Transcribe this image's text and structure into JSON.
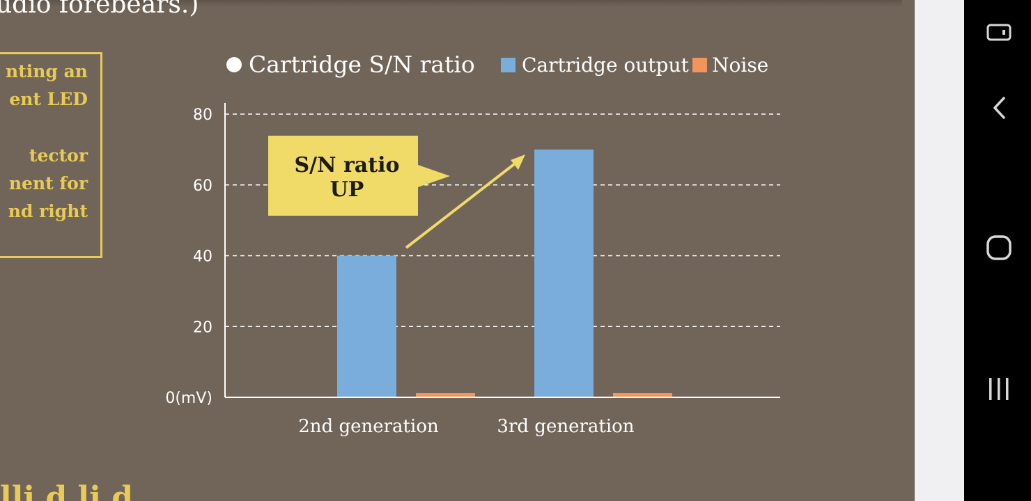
{
  "page": {
    "intro_text": "udio forebears.)",
    "callout_lines": [
      "nting an",
      "ent LED",
      "",
      "tector",
      "nent for",
      "nd right"
    ],
    "bottom_text": "lli   d li    d"
  },
  "colors": {
    "background": "#71655a",
    "output_bar": "#7aacdc",
    "noise_bar": "#f0955c",
    "accent_yellow": "#f0da68",
    "callout_border": "#e8cb57"
  },
  "navbar": {
    "icons": [
      "rotate-icon",
      "back-icon",
      "home-icon",
      "recents-icon"
    ]
  },
  "chart_data": {
    "type": "bar",
    "categories": [
      "2nd generation",
      "3rd generation"
    ],
    "series": [
      {
        "name": "Cartridge output",
        "values": [
          40,
          70
        ],
        "color": "#7aacdc"
      },
      {
        "name": "Noise",
        "values": [
          1,
          1
        ],
        "color": "#f0955c"
      }
    ],
    "legend_sn": "Cartridge S/N ratio",
    "legend_placement": "top",
    "y_ticks": [
      "0(mV)",
      "20",
      "40",
      "60",
      "80"
    ],
    "ylim": [
      0,
      80
    ],
    "grid": true,
    "annotation": {
      "line1": "S/N ratio",
      "line2": "UP"
    }
  }
}
